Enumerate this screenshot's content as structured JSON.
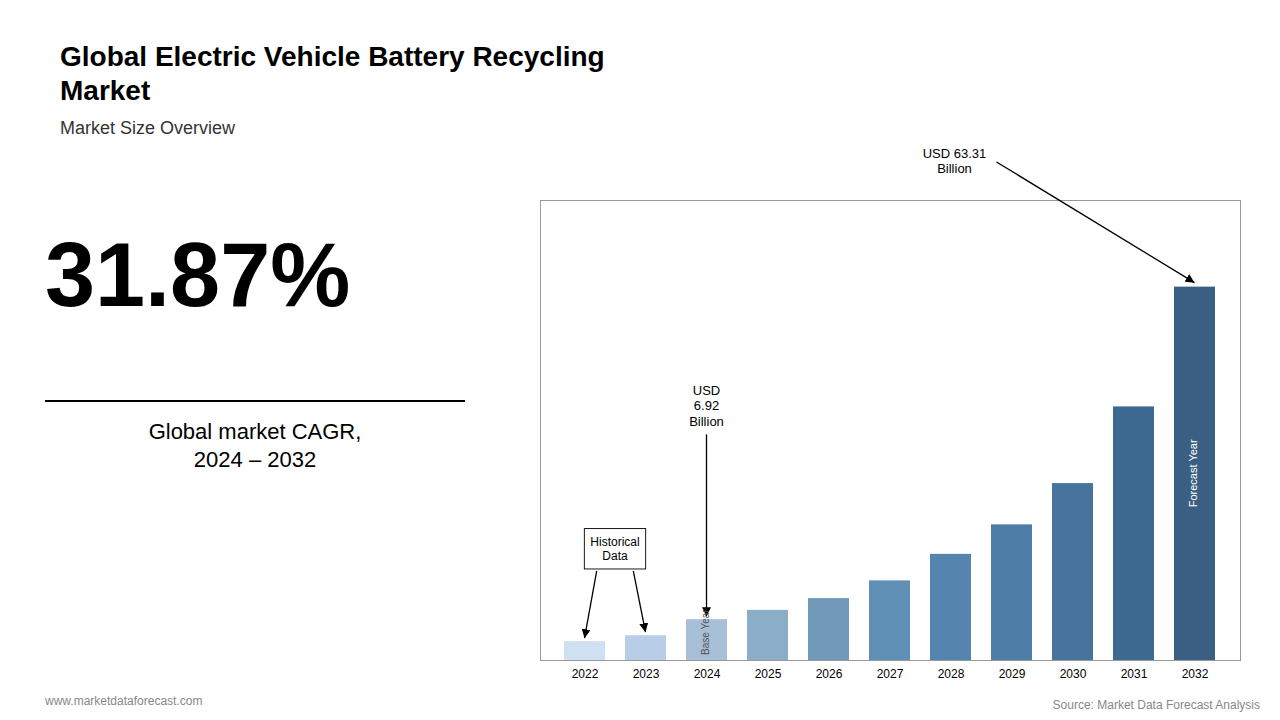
{
  "chart_data": {
    "type": "bar",
    "title": "Global Electric Vehicle Battery Recycling\nMarket",
    "subtitle": "Market Size Overview",
    "categories": [
      "2022",
      "2023",
      "2024",
      "2025",
      "2026",
      "2027",
      "2028",
      "2029",
      "2030",
      "2031",
      "2032"
    ],
    "values": [
      3.2,
      4.2,
      6.92,
      8.5,
      10.5,
      13.5,
      18.0,
      23.0,
      30.0,
      43.0,
      63.31
    ],
    "colors": [
      "#cfe0f3",
      "#b8cee8",
      "#a8bfd8",
      "#8baec8",
      "#7099ba",
      "#6090b5",
      "#5585ae",
      "#4d7da6",
      "#46749c",
      "#3d6a91",
      "#3a5f82"
    ],
    "ylim": [
      0,
      78
    ],
    "grid": false,
    "tick_labels": "x",
    "annotations": [
      {
        "text": "31.87%"
      },
      {
        "text": "Global market CAGR,\n2024 – 2032"
      },
      {
        "text": "USD\n6.92\nBillion",
        "category": "2024"
      },
      {
        "text": "USD 63.31\nBillion",
        "category": "2032"
      },
      {
        "text": "Historical\nData",
        "categories": [
          "2022",
          "2023"
        ]
      },
      {
        "text": "Base Year",
        "category": "2024"
      },
      {
        "text": "Forecast Year",
        "category": "2032"
      },
      {
        "text": "www.marketdataforecast.com"
      },
      {
        "text": "Source: Market Data Forecast Analysis"
      }
    ]
  }
}
